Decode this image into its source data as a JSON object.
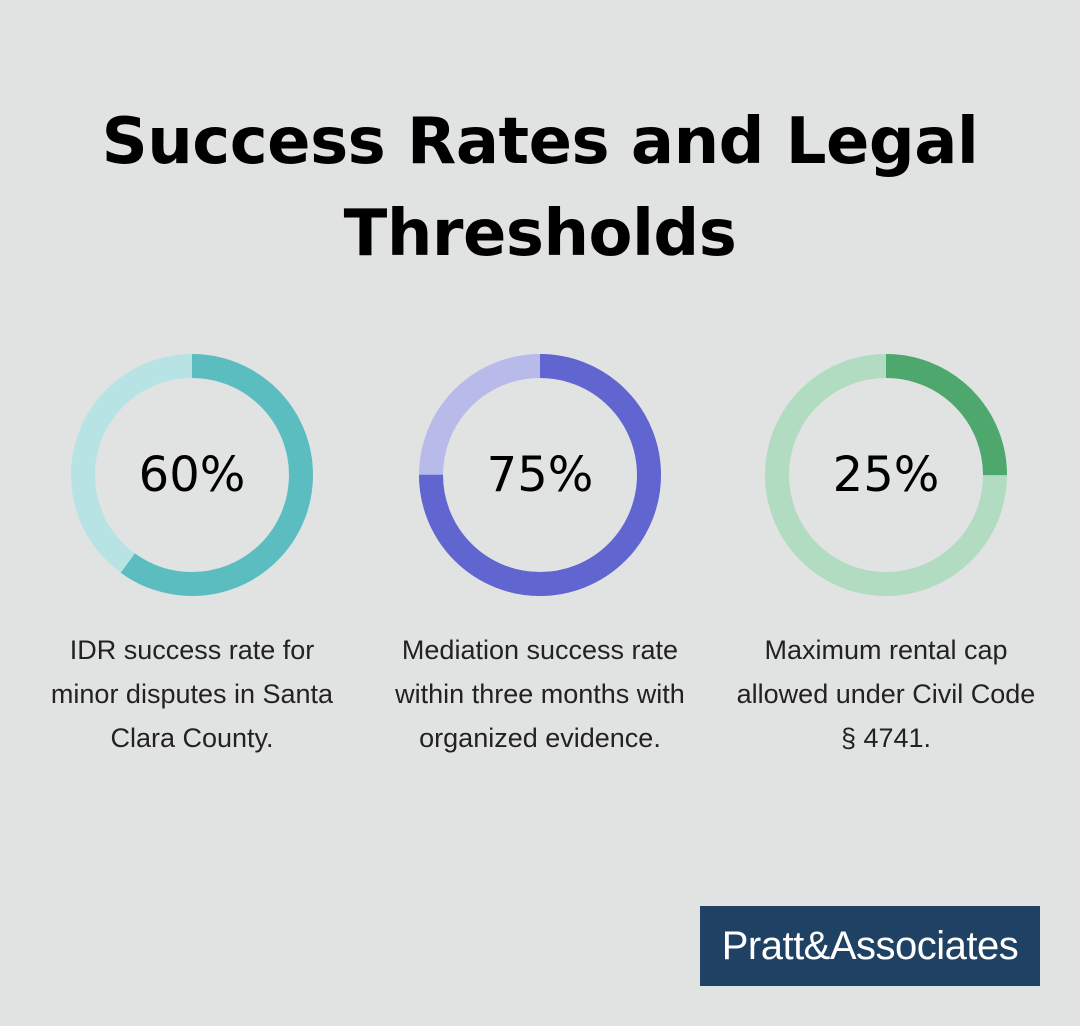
{
  "title": "Success Rates and Legal Thresholds",
  "stats": [
    {
      "value": 60,
      "label": "60%",
      "description": "IDR success rate for minor disputes in Santa Clara County.",
      "color": "#5bbdc0",
      "track": "#b8e3e5"
    },
    {
      "value": 75,
      "label": "75%",
      "description": "Mediation success rate within three months with organized evidence.",
      "color": "#6065cf",
      "track": "#b8bbea"
    },
    {
      "value": 25,
      "label": "25%",
      "description": "Maximum rental cap allowed under Civil Code § 4741.",
      "color": "#4ea86e",
      "track": "#b1dcc1"
    }
  ],
  "logo": {
    "text": "Pratt&Associates"
  },
  "chart_data": {
    "type": "pie",
    "title": "Success Rates and Legal Thresholds",
    "categories": [
      "IDR success rate for minor disputes in Santa Clara County",
      "Mediation success rate within three months with organized evidence",
      "Maximum rental cap allowed under Civil Code § 4741"
    ],
    "values": [
      60,
      75,
      25
    ],
    "units": "%",
    "style": "donut-progress"
  }
}
